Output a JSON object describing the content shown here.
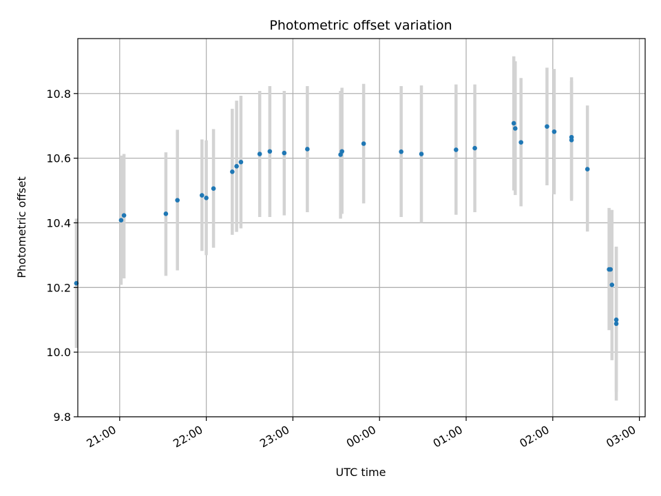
{
  "chart_data": {
    "type": "scatter",
    "title": "Photometric offset variation",
    "xlabel": "UTC time",
    "ylabel": "Photometric offset",
    "x_is_time": true,
    "x_date_start": "2000-01-01",
    "xlim": [
      "20:31",
      "03:04"
    ],
    "ylim": [
      9.8,
      10.97
    ],
    "yticks": [
      "9.8",
      "10.0",
      "10.2",
      "10.4",
      "10.6",
      "10.8"
    ],
    "xticks": [
      "21:00",
      "22:00",
      "23:00",
      "00:00",
      "01:00",
      "02:00",
      "03:00"
    ],
    "grid": true,
    "colors": {
      "point": "#1f77b4",
      "errorbar": "#d3d3d3",
      "grid": "#b0b0b0",
      "axis": "#000000"
    },
    "points": [
      {
        "x": "20:30",
        "y": 10.213,
        "ylo": 10.013,
        "yhi": 10.413
      },
      {
        "x": "21:01",
        "y": 10.408,
        "ylo": 10.208,
        "yhi": 10.608
      },
      {
        "x": "21:03",
        "y": 10.423,
        "ylo": 10.228,
        "yhi": 10.613
      },
      {
        "x": "21:32",
        "y": 10.428,
        "ylo": 10.236,
        "yhi": 10.618
      },
      {
        "x": "21:40",
        "y": 10.47,
        "ylo": 10.253,
        "yhi": 10.688
      },
      {
        "x": "21:57",
        "y": 10.485,
        "ylo": 10.313,
        "yhi": 10.658
      },
      {
        "x": "22:00",
        "y": 10.477,
        "ylo": 10.3,
        "yhi": 10.655
      },
      {
        "x": "22:05",
        "y": 10.506,
        "ylo": 10.323,
        "yhi": 10.69
      },
      {
        "x": "22:18",
        "y": 10.558,
        "ylo": 10.363,
        "yhi": 10.753
      },
      {
        "x": "22:21",
        "y": 10.575,
        "ylo": 10.372,
        "yhi": 10.778
      },
      {
        "x": "22:24",
        "y": 10.588,
        "ylo": 10.383,
        "yhi": 10.793
      },
      {
        "x": "22:37",
        "y": 10.613,
        "ylo": 10.418,
        "yhi": 10.808
      },
      {
        "x": "22:44",
        "y": 10.621,
        "ylo": 10.418,
        "yhi": 10.823
      },
      {
        "x": "22:54",
        "y": 10.616,
        "ylo": 10.423,
        "yhi": 10.808
      },
      {
        "x": "23:10",
        "y": 10.628,
        "ylo": 10.433,
        "yhi": 10.823
      },
      {
        "x": "23:33",
        "y": 10.611,
        "ylo": 10.413,
        "yhi": 10.808
      },
      {
        "x": "23:34",
        "y": 10.621,
        "ylo": 10.428,
        "yhi": 10.818
      },
      {
        "x": "23:49",
        "y": 10.645,
        "ylo": 10.46,
        "yhi": 10.83
      },
      {
        "x": "00:15",
        "y": 10.62,
        "ylo": 10.418,
        "yhi": 10.823
      },
      {
        "x": "00:29",
        "y": 10.613,
        "ylo": 10.4,
        "yhi": 10.825
      },
      {
        "x": "00:53",
        "y": 10.626,
        "ylo": 10.425,
        "yhi": 10.828
      },
      {
        "x": "01:06",
        "y": 10.631,
        "ylo": 10.433,
        "yhi": 10.828
      },
      {
        "x": "01:33",
        "y": 10.708,
        "ylo": 10.5,
        "yhi": 10.915
      },
      {
        "x": "01:34",
        "y": 10.692,
        "ylo": 10.486,
        "yhi": 10.9
      },
      {
        "x": "01:38",
        "y": 10.649,
        "ylo": 10.451,
        "yhi": 10.848
      },
      {
        "x": "01:56",
        "y": 10.698,
        "ylo": 10.516,
        "yhi": 10.88
      },
      {
        "x": "02:01",
        "y": 10.682,
        "ylo": 10.488,
        "yhi": 10.876
      },
      {
        "x": "02:13",
        "y": 10.665,
        "ylo": 10.468,
        "yhi": 10.85
      },
      {
        "x": "02:13",
        "y": 10.656,
        "ylo": 10.475,
        "yhi": 10.838
      },
      {
        "x": "02:24",
        "y": 10.566,
        "ylo": 10.373,
        "yhi": 10.763
      },
      {
        "x": "02:39",
        "y": 10.256,
        "ylo": 10.068,
        "yhi": 10.446
      },
      {
        "x": "02:40",
        "y": 10.256,
        "ylo": 10.07,
        "yhi": 10.44
      },
      {
        "x": "02:41",
        "y": 10.208,
        "ylo": 9.975,
        "yhi": 10.44
      },
      {
        "x": "02:44",
        "y": 10.1,
        "ylo": 9.878,
        "yhi": 10.326
      },
      {
        "x": "02:44",
        "y": 10.088,
        "ylo": 9.85,
        "yhi": 10.326
      }
    ]
  }
}
